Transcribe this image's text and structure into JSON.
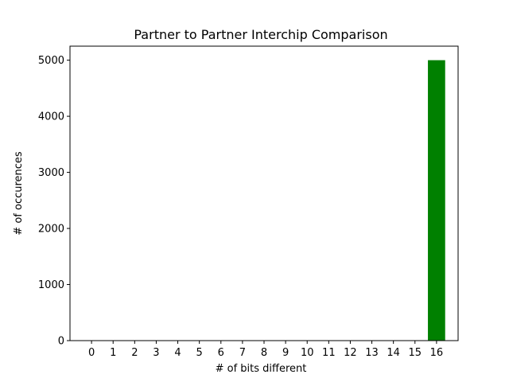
{
  "chart_data": {
    "type": "bar",
    "title": "Partner to Partner Interchip Comparison",
    "xlabel": "# of bits different",
    "ylabel": "# of occurences",
    "categories": [
      "0",
      "1",
      "2",
      "3",
      "4",
      "5",
      "6",
      "7",
      "8",
      "9",
      "10",
      "11",
      "12",
      "13",
      "14",
      "15",
      "16"
    ],
    "values": [
      0,
      0,
      0,
      0,
      0,
      0,
      0,
      0,
      0,
      0,
      0,
      0,
      0,
      0,
      0,
      0,
      5000
    ],
    "xlim": [
      -1,
      17
    ],
    "ylim": [
      0,
      5250
    ],
    "yticks": [
      0,
      1000,
      2000,
      3000,
      4000,
      5000
    ],
    "grid": false,
    "bar_color": "#008000"
  }
}
